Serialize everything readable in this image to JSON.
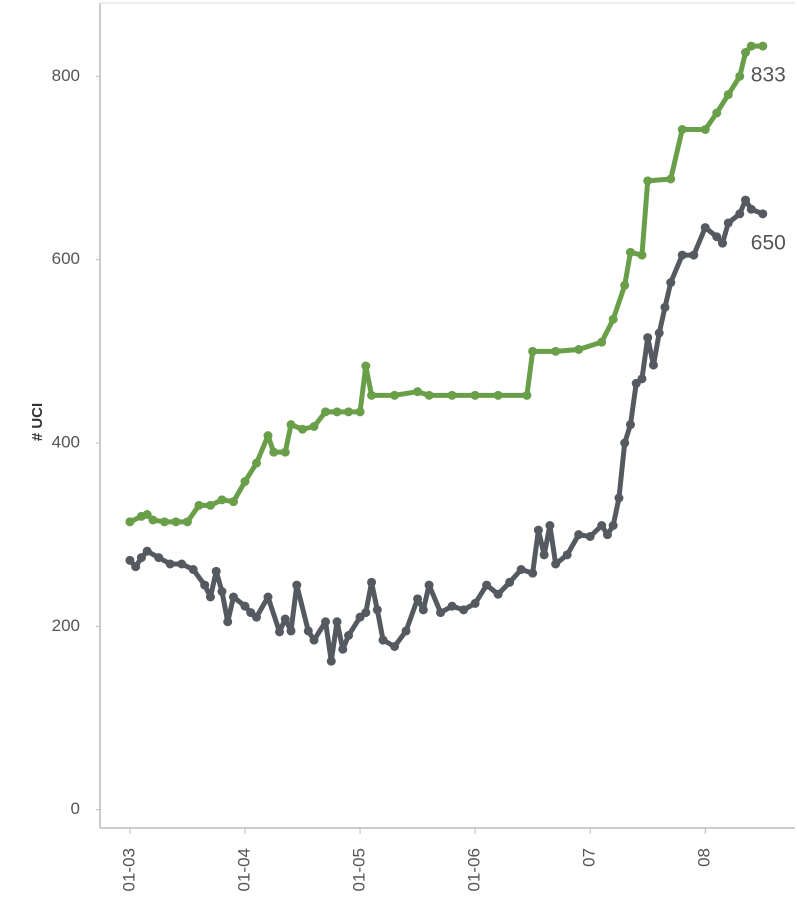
{
  "chart_data": {
    "type": "line",
    "y_label": "# UCI",
    "xlim": [
      2.74,
      8.78
    ],
    "xticks": [
      {
        "value": 3,
        "label": "01-03"
      },
      {
        "value": 4,
        "label": "01-04"
      },
      {
        "value": 5,
        "label": "01-05"
      },
      {
        "value": 6,
        "label": "01-06"
      },
      {
        "value": 7,
        "label": "07"
      },
      {
        "value": 8,
        "label": "08"
      }
    ],
    "ylim": [
      -20,
      880
    ],
    "yticks": [
      0,
      200,
      400,
      600,
      800
    ],
    "grid": false,
    "series": [
      {
        "color": "#6a9f4a",
        "end_label": 833,
        "x": [
          3.0,
          3.1,
          3.15,
          3.2,
          3.3,
          3.4,
          3.5,
          3.6,
          3.7,
          3.8,
          3.9,
          4.0,
          4.1,
          4.2,
          4.25,
          4.35,
          4.4,
          4.5,
          4.6,
          4.7,
          4.8,
          4.9,
          5.0,
          5.05,
          5.1,
          5.3,
          5.5,
          5.6,
          5.8,
          6.0,
          6.2,
          6.45,
          6.5,
          6.7,
          6.9,
          7.1,
          7.2,
          7.3,
          7.35,
          7.45,
          7.5,
          7.7,
          7.8,
          8.0,
          8.1,
          8.2,
          8.3,
          8.35,
          8.4,
          8.5
        ],
        "values": [
          314,
          320,
          322,
          316,
          314,
          314,
          314,
          332,
          332,
          338,
          336,
          358,
          378,
          408,
          390,
          390,
          420,
          415,
          418,
          434,
          434,
          434,
          434,
          484,
          452,
          452,
          456,
          452,
          452,
          452,
          452,
          452,
          500,
          500,
          502,
          510,
          535,
          572,
          608,
          605,
          686,
          688,
          742,
          742,
          760,
          780,
          800,
          826,
          833,
          833
        ]
      },
      {
        "color": "#555960",
        "end_label": 650,
        "x": [
          3.0,
          3.05,
          3.1,
          3.15,
          3.25,
          3.35,
          3.45,
          3.55,
          3.65,
          3.7,
          3.75,
          3.8,
          3.85,
          3.9,
          4.0,
          4.05,
          4.1,
          4.2,
          4.3,
          4.35,
          4.4,
          4.45,
          4.55,
          4.6,
          4.7,
          4.75,
          4.8,
          4.85,
          4.9,
          5.0,
          5.05,
          5.1,
          5.15,
          5.2,
          5.3,
          5.4,
          5.5,
          5.55,
          5.6,
          5.7,
          5.8,
          5.9,
          6.0,
          6.1,
          6.2,
          6.3,
          6.4,
          6.5,
          6.55,
          6.6,
          6.65,
          6.7,
          6.8,
          6.9,
          7.0,
          7.1,
          7.15,
          7.2,
          7.25,
          7.3,
          7.35,
          7.4,
          7.45,
          7.5,
          7.55,
          7.6,
          7.65,
          7.7,
          7.8,
          7.9,
          8.0,
          8.1,
          8.15,
          8.2,
          8.3,
          8.35,
          8.4,
          8.5
        ],
        "values": [
          272,
          265,
          275,
          282,
          275,
          268,
          268,
          262,
          245,
          232,
          260,
          238,
          205,
          232,
          222,
          215,
          210,
          232,
          194,
          208,
          195,
          245,
          195,
          185,
          205,
          162,
          205,
          175,
          190,
          210,
          215,
          248,
          218,
          185,
          178,
          195,
          230,
          218,
          245,
          215,
          222,
          218,
          225,
          245,
          235,
          248,
          262,
          258,
          305,
          278,
          310,
          268,
          278,
          300,
          298,
          310,
          300,
          310,
          340,
          400,
          420,
          465,
          470,
          515,
          485,
          520,
          548,
          575,
          605,
          605,
          635,
          625,
          618,
          640,
          650,
          665,
          655,
          650
        ]
      }
    ]
  }
}
